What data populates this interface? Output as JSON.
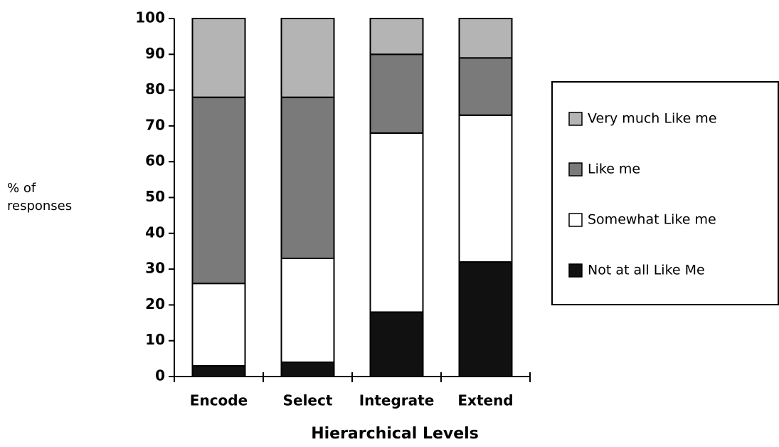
{
  "chart_data": {
    "type": "stacked_bar",
    "xlabel": "Hierarchical Levels",
    "ylabel": [
      "% of",
      "responses"
    ],
    "categories": [
      "Encode",
      "Select",
      "Integrate",
      "Extend"
    ],
    "series": [
      {
        "name": "Not at all Like Me",
        "color": "#111111",
        "values": [
          3,
          4,
          18,
          32
        ]
      },
      {
        "name": "Somewhat Like me",
        "color": "#ffffff",
        "values": [
          23,
          29,
          50,
          41
        ]
      },
      {
        "name": "Like me",
        "color": "#7a7a7a",
        "values": [
          52,
          45,
          22,
          16
        ]
      },
      {
        "name": "Very much Like me",
        "color": "#b4b4b4",
        "values": [
          22,
          22,
          10,
          11
        ]
      }
    ],
    "ylim": [
      0,
      100
    ],
    "yticks": [
      0,
      10,
      20,
      30,
      40,
      50,
      60,
      70,
      80,
      90,
      100
    ]
  }
}
